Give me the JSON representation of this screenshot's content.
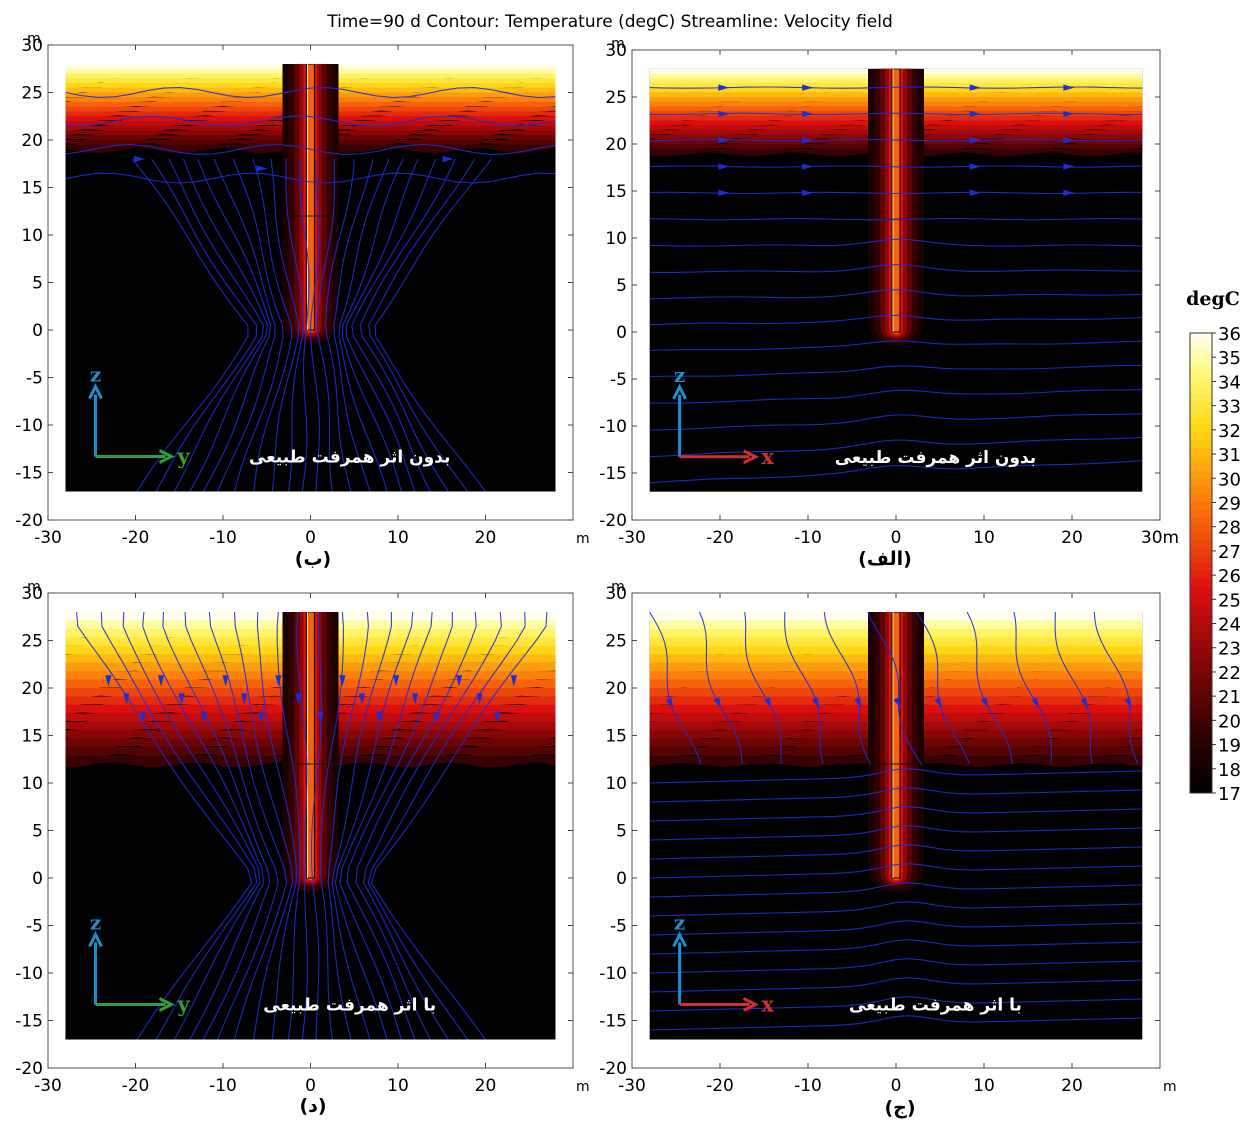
{
  "title": "Time=90 d Contour: Temperature (degC)  Streamline: Velocity field",
  "colorbar": {
    "label": "degC",
    "ticks": [
      "36",
      "35",
      "34",
      "33",
      "32",
      "31",
      "30",
      "29",
      "28",
      "27",
      "26",
      "25",
      "24",
      "23",
      "22",
      "21",
      "20",
      "19",
      "18",
      "17"
    ]
  },
  "chart_data": [
    {
      "type": "contour",
      "id": "b",
      "panel_label": "(ب)",
      "annotation": "بدون اثر همرفت طبیعی",
      "axes_arrows": {
        "vertical": "z",
        "horizontal": "y",
        "horizontal_color": "#2e9e3e",
        "vertical_color": "#1b8fd6"
      },
      "unit": "m",
      "xlim": [
        -30,
        30
      ],
      "ylim": [
        -20,
        30
      ],
      "xticks": [
        "-30",
        "-20",
        "-10",
        "0",
        "10",
        "20"
      ],
      "yticks": [
        "30",
        "25",
        "20",
        "15",
        "10",
        "5",
        "0",
        "-5",
        "-10",
        "-15",
        "-20"
      ],
      "domain": {
        "x": [
          -28,
          28
        ],
        "z": [
          -17,
          28
        ]
      },
      "hot_layer_bottom_z": 19,
      "pipe": {
        "x": 0,
        "z": [
          0,
          28
        ]
      },
      "flow": "convergent",
      "show_x_unit": true
    },
    {
      "type": "contour",
      "id": "alef",
      "panel_label": "(الف)",
      "annotation": "بدون اثر همرفت طبیعی",
      "axes_arrows": {
        "vertical": "z",
        "horizontal": "x",
        "horizontal_color": "#d32f2f",
        "vertical_color": "#1b8fd6"
      },
      "unit": "m",
      "xlim": [
        -30,
        30
      ],
      "ylim": [
        -20,
        30
      ],
      "xticks": [
        "-30",
        "-20",
        "-10",
        "0",
        "10",
        "20",
        "30m"
      ],
      "yticks": [
        "30",
        "25",
        "20",
        "15",
        "10",
        "5",
        "0",
        "-5",
        "-10",
        "-15",
        "-20"
      ],
      "domain": {
        "x": [
          -28,
          28
        ],
        "z": [
          -17,
          28
        ]
      },
      "hot_layer_bottom_z": 19,
      "pipe": {
        "x": 0,
        "z": [
          0,
          28
        ]
      },
      "flow": "horizontal",
      "show_x_unit": false
    },
    {
      "type": "contour",
      "id": "dal",
      "panel_label": "(د)",
      "annotation": "با اثر همرفت طبیعی",
      "axes_arrows": {
        "vertical": "z",
        "horizontal": "y",
        "horizontal_color": "#2e9e3e",
        "vertical_color": "#1b8fd6"
      },
      "unit": "m",
      "xlim": [
        -30,
        30
      ],
      "ylim": [
        -20,
        30
      ],
      "xticks": [
        "-30",
        "-20",
        "-10",
        "0",
        "10",
        "20"
      ],
      "yticks": [
        "30",
        "25",
        "20",
        "15",
        "10",
        "5",
        "0",
        "-5",
        "-10",
        "-15",
        "-20"
      ],
      "domain": {
        "x": [
          -28,
          28
        ],
        "z": [
          -17,
          28
        ]
      },
      "hot_layer_bottom_z": 12,
      "pipe": {
        "x": 0,
        "z": [
          0,
          28
        ]
      },
      "flow": "downward-convergent",
      "show_x_unit": true
    },
    {
      "type": "contour",
      "id": "jim",
      "panel_label": "(ج)",
      "annotation": "با اثر همرفت طبیعی",
      "axes_arrows": {
        "vertical": "z",
        "horizontal": "x",
        "horizontal_color": "#d32f2f",
        "vertical_color": "#1b8fd6"
      },
      "unit": "m",
      "xlim": [
        -30,
        30
      ],
      "ylim": [
        -20,
        30
      ],
      "xticks": [
        "-30",
        "-20",
        "-10",
        "0",
        "10",
        "20"
      ],
      "yticks": [
        "30",
        "25",
        "20",
        "15",
        "10",
        "5",
        "0",
        "-5",
        "-10",
        "-15",
        "-20"
      ],
      "domain": {
        "x": [
          -28,
          28
        ],
        "z": [
          -17,
          28
        ]
      },
      "hot_layer_bottom_z": 12,
      "pipe": {
        "x": 0,
        "z": [
          0,
          28
        ]
      },
      "flow": "diagonal-horizontal",
      "show_x_unit": true
    }
  ]
}
